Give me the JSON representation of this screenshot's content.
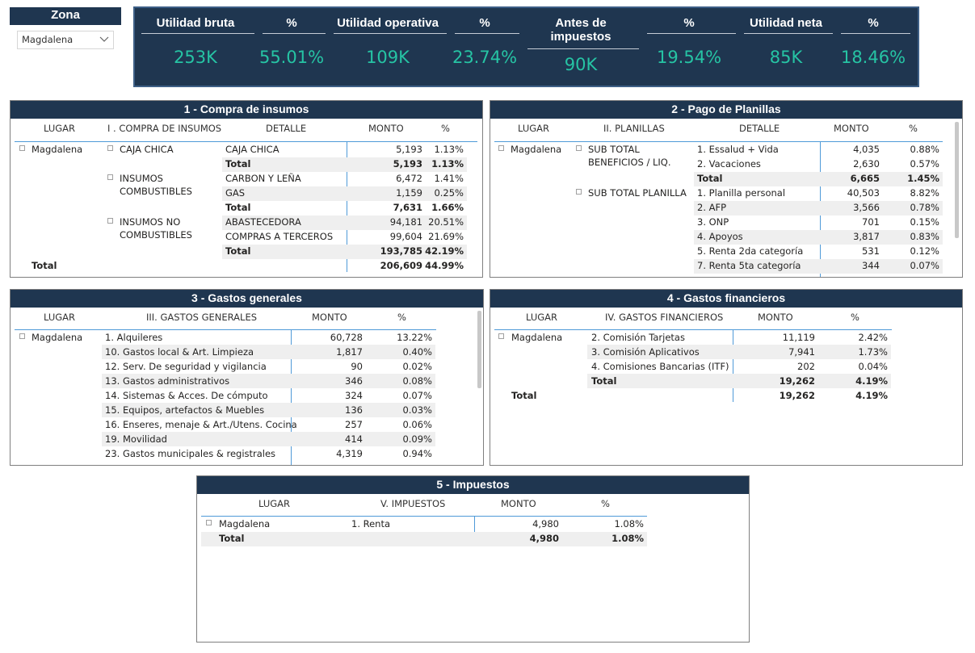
{
  "zona": {
    "title": "Zona",
    "selected": "Magdalena"
  },
  "kpis": [
    {
      "label": "Utilidad bruta",
      "value": "253K"
    },
    {
      "label": "%",
      "value": "55.01%"
    },
    {
      "label": "Utilidad operativa",
      "value": "109K"
    },
    {
      "label": "%",
      "value": "23.74%"
    },
    {
      "label": "Antes de impuestos",
      "value": "90K"
    },
    {
      "label": "%",
      "value": "19.54%"
    },
    {
      "label": "Utilidad neta",
      "value": "85K"
    },
    {
      "label": "%",
      "value": "18.46%"
    }
  ],
  "p1": {
    "title": "1 - Compra de insumos",
    "headers": {
      "lugar": "LUGAR",
      "group": "I . COMPRA DE INSUMOS",
      "detalle": "DETALLE",
      "monto": "MONTO",
      "pct": "%"
    },
    "lugar": "Magdalena",
    "groups": [
      "CAJA CHICA",
      "INSUMOS COMBUSTIBLES",
      "INSUMOS NO COMBUSTIBLES"
    ],
    "rows": [
      {
        "d": "CAJA CHICA",
        "m": "5,193",
        "p": "1.13%"
      },
      {
        "d": "Total",
        "m": "5,193",
        "p": "1.13%"
      },
      {
        "d": "CARBON Y LEÑA",
        "m": "6,472",
        "p": "1.41%"
      },
      {
        "d": "GAS",
        "m": "1,159",
        "p": "0.25%"
      },
      {
        "d": "Total",
        "m": "7,631",
        "p": "1.66%"
      },
      {
        "d": "ABASTECEDORA",
        "m": "94,181",
        "p": "20.51%"
      },
      {
        "d": "COMPRAS A TERCEROS",
        "m": "99,604",
        "p": "21.69%"
      },
      {
        "d": "Total",
        "m": "193,785",
        "p": "42.19%"
      }
    ],
    "total": {
      "label": "Total",
      "m": "206,609",
      "p": "44.99%"
    }
  },
  "p2": {
    "title": "2 - Pago de Planillas",
    "headers": {
      "lugar": "LUGAR",
      "group": "II. PLANILLAS",
      "detalle": "DETALLE",
      "monto": "MONTO",
      "pct": "%"
    },
    "lugar": "Magdalena",
    "groups": [
      "SUB TOTAL BENEFICIOS / LIQ.",
      "SUB TOTAL PLANILLA"
    ],
    "rows": [
      {
        "d": "1. Essalud + Vida",
        "m": "4,035",
        "p": "0.88%"
      },
      {
        "d": "2. Vacaciones",
        "m": "2,630",
        "p": "0.57%"
      },
      {
        "d": "Total",
        "m": "6,665",
        "p": "1.45%"
      },
      {
        "d": "1. Planilla personal",
        "m": "40,503",
        "p": "8.82%"
      },
      {
        "d": "2. AFP",
        "m": "3,566",
        "p": "0.78%"
      },
      {
        "d": "3. ONP",
        "m": "701",
        "p": "0.15%"
      },
      {
        "d": "4. Apoyos",
        "m": "3,817",
        "p": "0.83%"
      },
      {
        "d": "5. Renta 2da categoría",
        "m": "531",
        "p": "0.12%"
      },
      {
        "d": "7. Renta 5ta categoría",
        "m": "344",
        "p": "0.07%"
      }
    ]
  },
  "p3": {
    "title": "3 - Gastos generales",
    "headers": {
      "lugar": "LUGAR",
      "group": "III. GASTOS GENERALES",
      "monto": "MONTO",
      "pct": "%"
    },
    "lugar": "Magdalena",
    "rows": [
      {
        "d": "1. Alquileres",
        "m": "60,728",
        "p": "13.22%"
      },
      {
        "d": "10. Gastos local & Art. Limpieza",
        "m": "1,817",
        "p": "0.40%"
      },
      {
        "d": "12. Serv. De seguridad y vigilancia",
        "m": "90",
        "p": "0.02%"
      },
      {
        "d": "13. Gastos administrativos",
        "m": "346",
        "p": "0.08%"
      },
      {
        "d": "14. Sistemas & Acces. De cómputo",
        "m": "324",
        "p": "0.07%"
      },
      {
        "d": "15. Equipos, artefactos & Muebles",
        "m": "136",
        "p": "0.03%"
      },
      {
        "d": "16. Enseres, menaje & Art./Utens. Cocina",
        "m": "257",
        "p": "0.06%"
      },
      {
        "d": "19. Movilidad",
        "m": "414",
        "p": "0.09%"
      },
      {
        "d": "23. Gastos municipales & registrales",
        "m": "4,319",
        "p": "0.94%"
      }
    ]
  },
  "p4": {
    "title": "4 - Gastos financieros",
    "headers": {
      "lugar": "LUGAR",
      "group": "IV. GASTOS FINANCIEROS",
      "monto": "MONTO",
      "pct": "%"
    },
    "lugar": "Magdalena",
    "rows": [
      {
        "d": "2. Comisión Tarjetas",
        "m": "11,119",
        "p": "2.42%"
      },
      {
        "d": "3. Comisión Aplicativos",
        "m": "7,941",
        "p": "1.73%"
      },
      {
        "d": "4. Comisiones Bancarias (ITF)",
        "m": "202",
        "p": "0.04%"
      },
      {
        "d": "Total",
        "m": "19,262",
        "p": "4.19%"
      }
    ],
    "total": {
      "label": "Total",
      "m": "19,262",
      "p": "4.19%"
    }
  },
  "p5": {
    "title": "5 - Impuestos",
    "headers": {
      "lugar": "LUGAR",
      "group": "V. IMPUESTOS",
      "monto": "MONTO",
      "pct": "%"
    },
    "lugar": "Magdalena",
    "rows": [
      {
        "d": "1. Renta",
        "m": "4,980",
        "p": "1.08%"
      }
    ],
    "total": {
      "label": "Total",
      "m": "4,980",
      "p": "1.08%"
    }
  },
  "colors": {
    "header_bg": "#1f3650",
    "kpi_value": "#26c4a4",
    "rule": "#4f9ad8",
    "band": "#efefef"
  }
}
